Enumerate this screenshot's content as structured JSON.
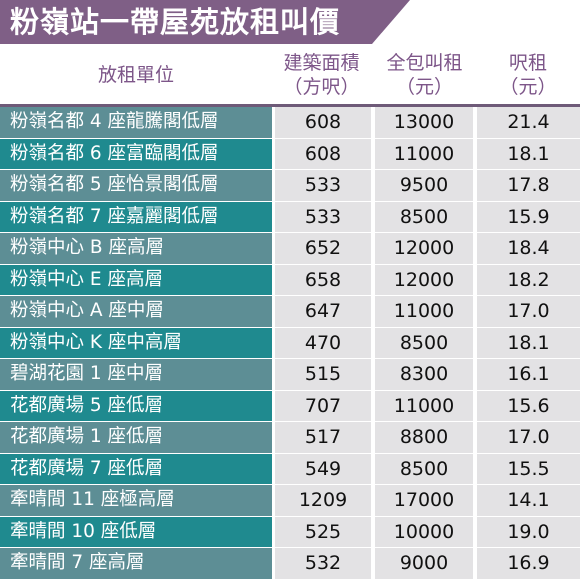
{
  "title": "粉嶺站一帶屋苑放租叫價",
  "colors": {
    "title_bg": "#7f5f86",
    "header_text": "#7d5689",
    "row_teal_light": "#5d8e95",
    "row_teal_dark": "#1f8a8f",
    "value_cell_bg": "#e3e2e4"
  },
  "headers": {
    "unit": "放租單位",
    "area_line1": "建築面積",
    "area_line2": "（方呎）",
    "rent_line1": "全包叫租",
    "rent_line2": "（元）",
    "per_line1": "呎租",
    "per_line2": "（元）"
  },
  "rows": [
    {
      "unit": "粉嶺名都 4 座龍騰閣低層",
      "area": "608",
      "rent": "13000",
      "per_sqft": "21.4"
    },
    {
      "unit": "粉嶺名都 6 座富臨閣低層",
      "area": "608",
      "rent": "11000",
      "per_sqft": "18.1"
    },
    {
      "unit": "粉嶺名都 5 座怡景閣低層",
      "area": "533",
      "rent": "9500",
      "per_sqft": "17.8"
    },
    {
      "unit": "粉嶺名都 7 座嘉麗閣低層",
      "area": "533",
      "rent": "8500",
      "per_sqft": "15.9"
    },
    {
      "unit": "粉嶺中心 B 座高層",
      "area": "652",
      "rent": "12000",
      "per_sqft": "18.4"
    },
    {
      "unit": "粉嶺中心 E 座高層",
      "area": "658",
      "rent": "12000",
      "per_sqft": "18.2"
    },
    {
      "unit": "粉嶺中心 A 座中層",
      "area": "647",
      "rent": "11000",
      "per_sqft": "17.0"
    },
    {
      "unit": "粉嶺中心 K 座中高層",
      "area": "470",
      "rent": "8500",
      "per_sqft": "18.1"
    },
    {
      "unit": "碧湖花園 1 座中層",
      "area": "515",
      "rent": "8300",
      "per_sqft": "16.1"
    },
    {
      "unit": "花都廣場 5 座低層",
      "area": "707",
      "rent": "11000",
      "per_sqft": "15.6"
    },
    {
      "unit": "花都廣場 1 座低層",
      "area": "517",
      "rent": "8800",
      "per_sqft": "17.0"
    },
    {
      "unit": "花都廣場 7 座低層",
      "area": "549",
      "rent": "8500",
      "per_sqft": "15.5"
    },
    {
      "unit": "牽晴間 11 座極高層",
      "area": "1209",
      "rent": "17000",
      "per_sqft": "14.1"
    },
    {
      "unit": "牽晴間 10 座低層",
      "area": "525",
      "rent": "10000",
      "per_sqft": "19.0"
    },
    {
      "unit": "牽晴間 7 座高層",
      "area": "532",
      "rent": "9000",
      "per_sqft": "16.9"
    }
  ]
}
